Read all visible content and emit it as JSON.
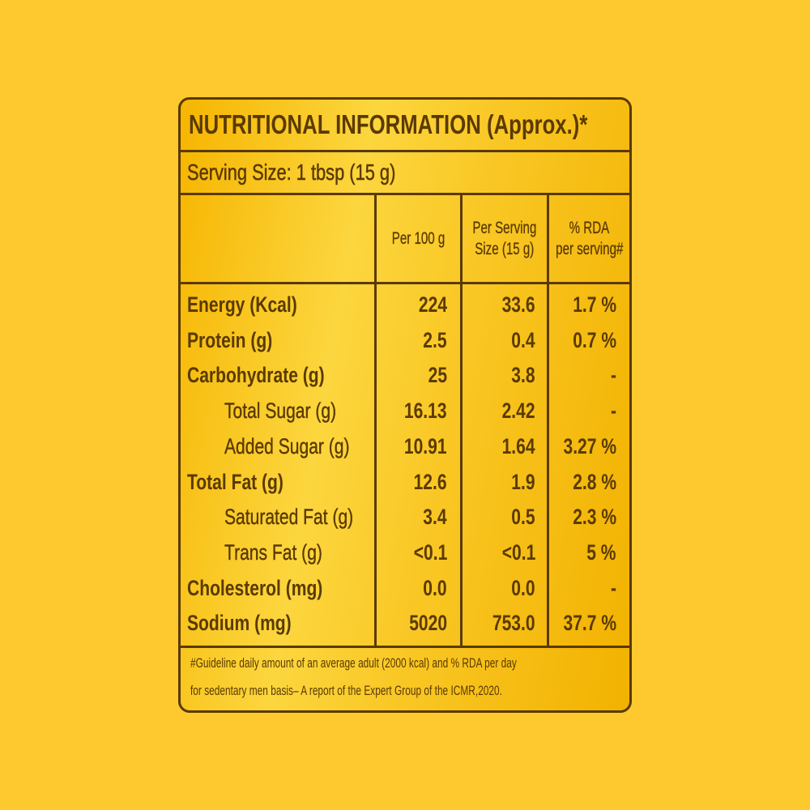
{
  "label": {
    "title": "NUTRITIONAL INFORMATION (Approx.)*",
    "serving_size": "Serving Size: 1 tbsp (15 g)",
    "headers": {
      "per_100g": [
        "Per 100 g"
      ],
      "per_serving": [
        "Per Serving",
        "Size (15 g)"
      ],
      "rda": [
        "% RDA",
        "per serving#"
      ]
    },
    "rows": [
      [
        "Energy (Kcal)",
        "224",
        "33.6",
        "1.7 %"
      ],
      [
        "Protein (g)",
        "2.5",
        "0.4",
        "0.7 %"
      ],
      [
        "Carbohydrate (g)",
        "25",
        "3.8",
        "-"
      ],
      [
        "Total Sugar (g)",
        "16.13",
        "2.42",
        "-"
      ],
      [
        "Added Sugar (g)",
        "10.91",
        "1.64",
        "3.27 %"
      ],
      [
        "Total Fat (g)",
        "12.6",
        "1.9",
        "2.8 %"
      ],
      [
        "Saturated Fat (g)",
        "3.4",
        "0.5",
        "2.3 %"
      ],
      [
        "Trans Fat (g)",
        "<0.1",
        "<0.1",
        "5 %"
      ],
      [
        "Cholesterol (mg)",
        "0.0",
        "0.0",
        "-"
      ],
      [
        "Sodium (mg)",
        "5020",
        "753.0",
        "37.7 %"
      ]
    ],
    "footnote": [
      "#Guideline daily amount of an average adult (2000 kcal) and % RDA per day",
      "for sedentary men basis– A report of the Expert Group of the ICMR,2020."
    ]
  }
}
